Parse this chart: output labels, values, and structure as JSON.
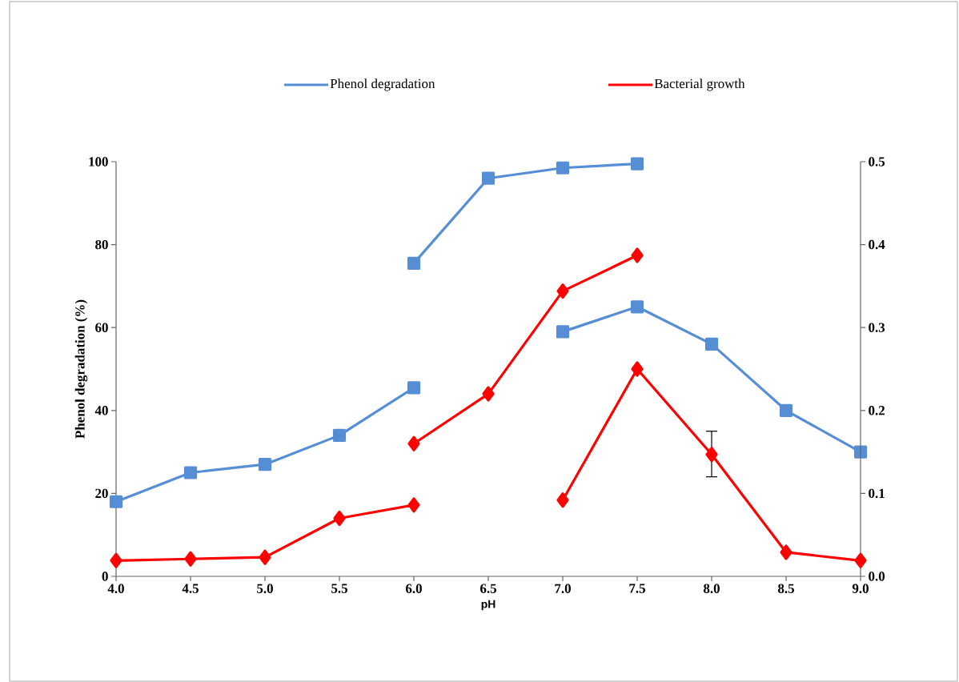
{
  "chart_data": {
    "type": "line",
    "xlabel": "pH",
    "ylabel": "Phenol degradation (%)",
    "legend": "top",
    "grid": false,
    "line_style": "solid",
    "xlim": [
      4,
      9
    ],
    "xticks": [
      {
        "value": 4,
        "label": "4.0"
      },
      {
        "value": 4.5,
        "label": "4.5"
      },
      {
        "value": 5,
        "label": "5.0"
      },
      {
        "value": 5.5,
        "label": "5.5"
      },
      {
        "value": 6,
        "label": "6.0"
      },
      {
        "value": 6.5,
        "label": "6.5"
      },
      {
        "value": 7,
        "label": "7.0"
      },
      {
        "value": 7.5,
        "label": "7.5"
      },
      {
        "value": 8,
        "label": "8.0"
      },
      {
        "value": 8.5,
        "label": "8.5"
      },
      {
        "value": 9,
        "label": "9.0"
      }
    ],
    "ylim": [
      0,
      100
    ],
    "yticks": [
      0,
      20,
      40,
      60,
      80,
      100
    ],
    "y2lim": [
      0,
      0.5
    ],
    "y2ticks": [
      {
        "value": 0,
        "label": "0.0"
      },
      0.1,
      0.2,
      0.3,
      0.4,
      0.5
    ],
    "series": [
      {
        "name": "Phenol degradation",
        "color": "#558ed5",
        "marker": "square",
        "x": [
          4,
          4.5,
          5,
          5.5,
          6
        ],
        "values": [
          18,
          25,
          27,
          34,
          45.5
        ]
      },
      {
        "color": "#558ed5",
        "marker": "square",
        "x": [
          6,
          6.5,
          7,
          7.5
        ],
        "values": [
          75.5,
          96,
          98.5,
          99.5
        ]
      },
      {
        "color": "#558ed5",
        "marker": "square",
        "x": [
          7,
          7.5,
          8,
          8.5,
          9
        ],
        "values": [
          59,
          65,
          56,
          40,
          30
        ]
      },
      {
        "name": "Bacterial growth",
        "color": "#ff0000",
        "marker": "diamond",
        "axis": "y2",
        "x": [
          4,
          4.5,
          5,
          5.5,
          6
        ],
        "values": [
          0.019,
          0.021,
          0.023,
          0.07,
          0.086
        ]
      },
      {
        "color": "#ff0000",
        "marker": "diamond",
        "axis": "y2",
        "x": [
          6,
          6.5,
          7,
          7.5
        ],
        "values": [
          0.16,
          0.22,
          0.344,
          0.387
        ]
      },
      {
        "color": "#ff0000",
        "marker": "diamond",
        "axis": "y2",
        "x": [
          7,
          7.5,
          8,
          8.5,
          9
        ],
        "values": [
          0.092,
          0.25,
          0.147,
          0.029,
          0.019
        ],
        "errors": [
          null,
          null,
          [
            0.12,
            0.175
          ],
          null,
          null
        ]
      }
    ]
  }
}
